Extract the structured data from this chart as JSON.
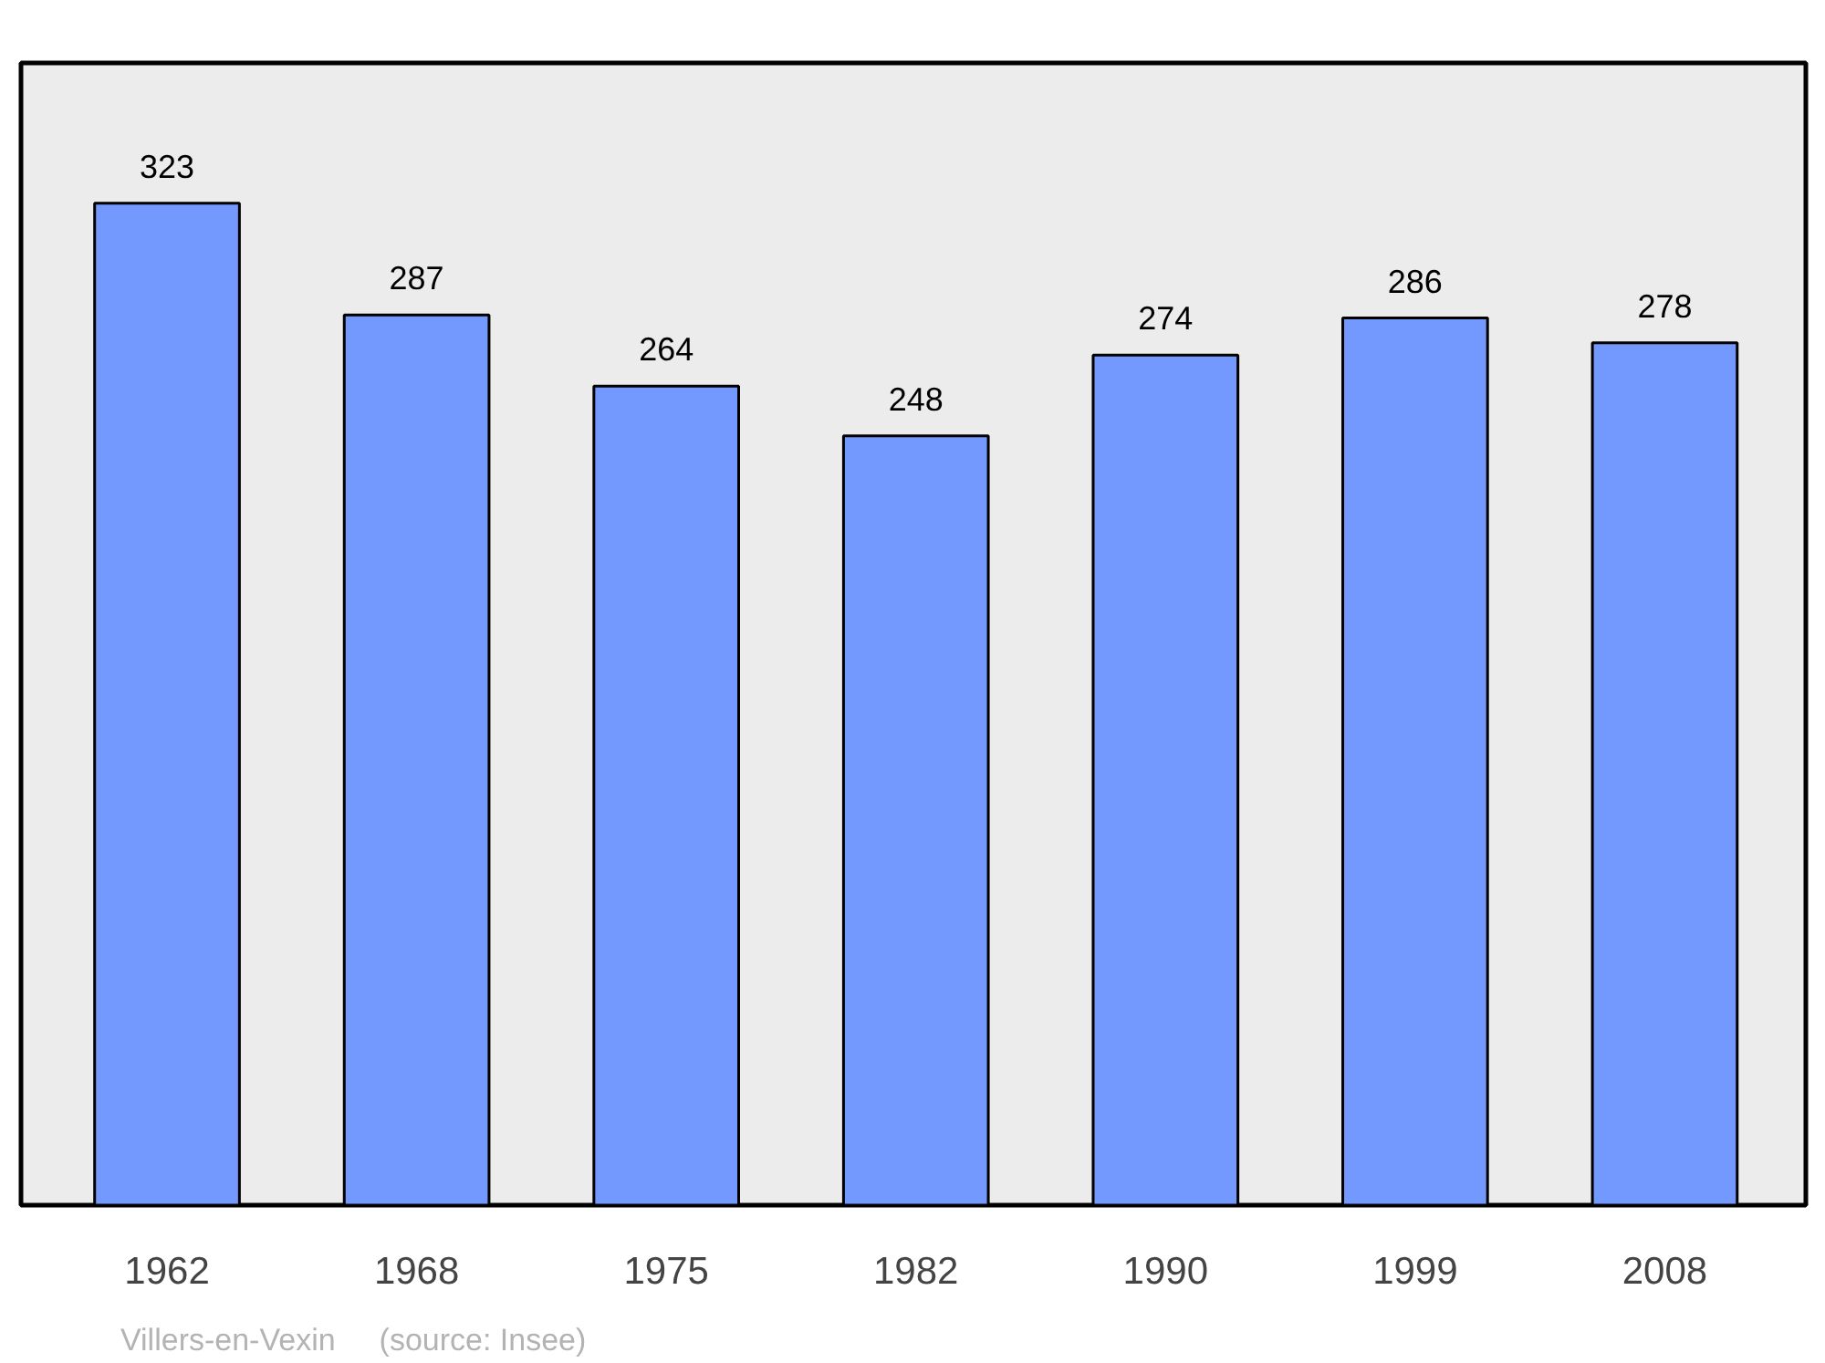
{
  "chart_data": {
    "type": "bar",
    "categories": [
      "1962",
      "1968",
      "1975",
      "1982",
      "1990",
      "1999",
      "2008"
    ],
    "values": [
      323,
      287,
      264,
      248,
      274,
      286,
      278
    ],
    "color": "#7399ff",
    "data_labels": true,
    "grid": false,
    "tick_labels": "x",
    "annotations": [
      "Villers-en-Vexin",
      "(source: Insee)"
    ]
  }
}
